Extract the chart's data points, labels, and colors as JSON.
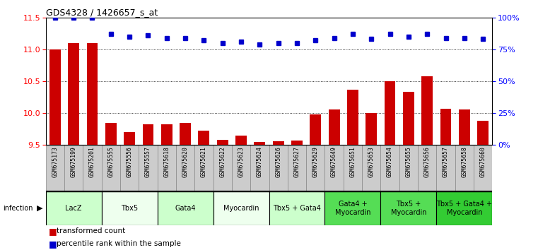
{
  "title": "GDS4328 / 1426657_s_at",
  "samples": [
    "GSM675173",
    "GSM675199",
    "GSM675201",
    "GSM675555",
    "GSM675556",
    "GSM675557",
    "GSM675618",
    "GSM675620",
    "GSM675621",
    "GSM675622",
    "GSM675623",
    "GSM675624",
    "GSM675626",
    "GSM675627",
    "GSM675629",
    "GSM675649",
    "GSM675651",
    "GSM675653",
    "GSM675654",
    "GSM675655",
    "GSM675656",
    "GSM675657",
    "GSM675658",
    "GSM675660"
  ],
  "bar_values": [
    11.0,
    11.1,
    11.1,
    9.85,
    9.7,
    9.83,
    9.83,
    9.85,
    9.72,
    9.58,
    9.65,
    9.55,
    9.56,
    9.57,
    9.98,
    10.06,
    10.37,
    10.0,
    10.5,
    10.33,
    10.58,
    10.07,
    10.06,
    9.88
  ],
  "percentile_values": [
    100,
    100,
    100,
    87,
    85,
    86,
    84,
    84,
    82,
    80,
    81,
    79,
    80,
    80,
    82,
    84,
    87,
    83,
    87,
    85,
    87,
    84,
    84,
    83
  ],
  "groups": [
    {
      "label": "LacZ",
      "start": 0,
      "end": 3,
      "color": "#ccffcc"
    },
    {
      "label": "Tbx5",
      "start": 3,
      "end": 6,
      "color": "#eeffee"
    },
    {
      "label": "Gata4",
      "start": 6,
      "end": 9,
      "color": "#ccffcc"
    },
    {
      "label": "Myocardin",
      "start": 9,
      "end": 12,
      "color": "#eeffee"
    },
    {
      "label": "Tbx5 + Gata4",
      "start": 12,
      "end": 15,
      "color": "#ccffcc"
    },
    {
      "label": "Gata4 +\nMyocardin",
      "start": 15,
      "end": 18,
      "color": "#55dd55"
    },
    {
      "label": "Tbx5 +\nMyocardin",
      "start": 18,
      "end": 21,
      "color": "#55dd55"
    },
    {
      "label": "Tbx5 + Gata4 +\nMyocardin",
      "start": 21,
      "end": 24,
      "color": "#33cc33"
    }
  ],
  "ylim_left": [
    9.5,
    11.5
  ],
  "yticks_left": [
    9.5,
    10.0,
    10.5,
    11.0,
    11.5
  ],
  "ylim_right": [
    0,
    100
  ],
  "yticks_right": [
    0,
    25,
    50,
    75,
    100
  ],
  "bar_color": "#cc0000",
  "dot_color": "#0000cc",
  "bar_width": 0.6,
  "sample_box_color": "#cccccc",
  "sample_box_edge": "#888888"
}
